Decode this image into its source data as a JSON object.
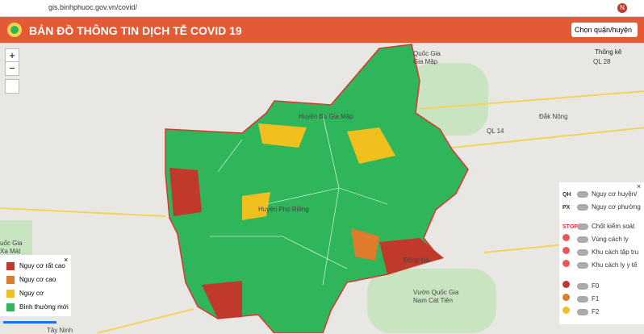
{
  "browser": {
    "url": "gis.binhphuoc.gov.vn/covid/",
    "avatar": "N"
  },
  "header": {
    "title": "BẢN ĐỒ THÔNG TIN DỊCH TỄ COVID 19",
    "district_select": "Chọn quận/huyện"
  },
  "map": {
    "stats_button": "Thống kê",
    "zoom_in": "+",
    "zoom_out": "−",
    "labels": [
      "Quốc Gia",
      "Gia Mập",
      "Đắk Nông",
      "Vườn Quốc Gia",
      "Nam Cát Tiên",
      "Tây Ninh",
      "uốc Gia",
      "Xa Mát",
      "QL 28",
      "QL 14",
      "Huyện Bù Gia Mập",
      "Huyện Phú Riềng",
      "Đồng Hà"
    ]
  },
  "legend": {
    "items": [
      "Nguy cơ rất cao",
      "Nguy cơ cao",
      "Nguy cơ",
      "Bình thường mới"
    ]
  },
  "layers": {
    "items": [
      {
        "prefix": "QH",
        "label": "Nguy cơ huyện/"
      },
      {
        "prefix": "PX",
        "label": "Nguy cơ phường"
      },
      {
        "prefix": "STOP",
        "label": "Chốt kiểm soát"
      },
      {
        "label": "Vùng cách ly"
      },
      {
        "label": "Khu cách tập tru"
      },
      {
        "label": "Khu cách ly y tế"
      },
      {
        "label": "F0"
      },
      {
        "label": "F1"
      },
      {
        "label": "F2"
      }
    ]
  }
}
